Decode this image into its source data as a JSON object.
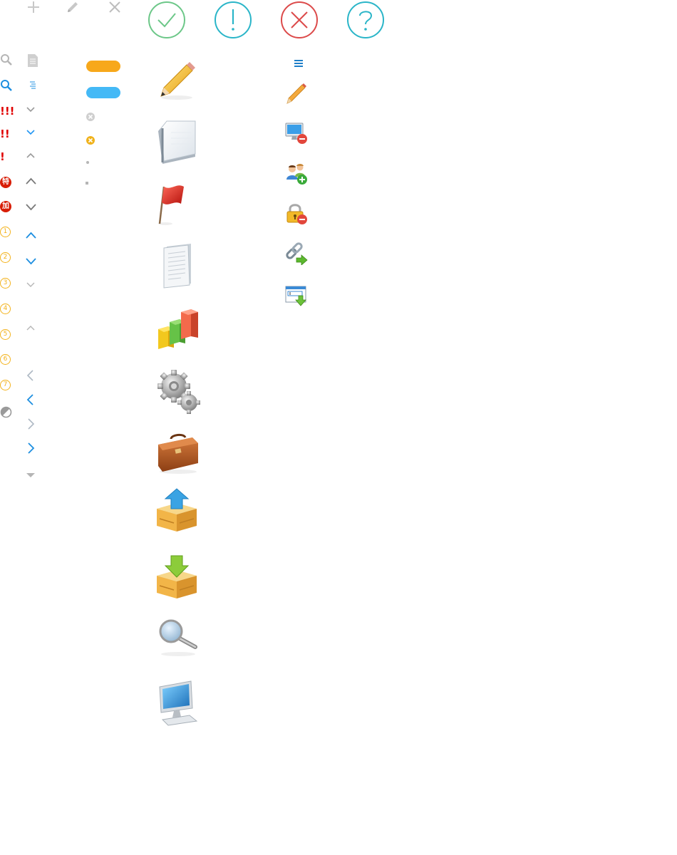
{
  "colors": {
    "orange": "#f7a81b",
    "blue": "#44b9f6",
    "green": "#6cc788",
    "teal": "#2ab5c8",
    "red": "#dc4a4a",
    "bang_red": "#e00000",
    "badge_red": "#d81e06",
    "number_gold": "#f3b21b",
    "light_gray": "#c8c8c8",
    "mid_gray": "#999999"
  },
  "top_toolbar": {
    "plus_icon": "plus-icon",
    "pencil_icon": "pencil-icon",
    "close_icon": "close-icon"
  },
  "status_circles": [
    {
      "name": "success-check-icon",
      "glyph": "check",
      "color": "#6cc788"
    },
    {
      "name": "warning-exclamation-icon",
      "glyph": "exclamation",
      "color": "#2ab5c8"
    },
    {
      "name": "error-x-icon",
      "glyph": "x",
      "color": "#dc4a4a"
    },
    {
      "name": "help-question-icon",
      "glyph": "?",
      "color": "#2ab5c8"
    }
  ],
  "priority": {
    "p3": "!!!",
    "p2": "!!",
    "p1": "!"
  },
  "badges": {
    "urgent": "特",
    "add": "加"
  },
  "numbers": [
    "1",
    "2",
    "3",
    "4",
    "5",
    "6",
    "7"
  ],
  "large_icons": [
    "pencil-icon",
    "notepad-icon",
    "red-flag-icon",
    "document-icon",
    "bar-chart-icon",
    "gears-icon",
    "briefcase-icon",
    "box-upload-icon",
    "box-download-icon",
    "magnifier-icon",
    "computer-monitor-icon"
  ],
  "small_icons": [
    "menu-lines-icon",
    "pencil-small-icon",
    "monitor-remove-icon",
    "users-add-icon",
    "lock-remove-icon",
    "link-forward-icon",
    "form-download-icon"
  ]
}
